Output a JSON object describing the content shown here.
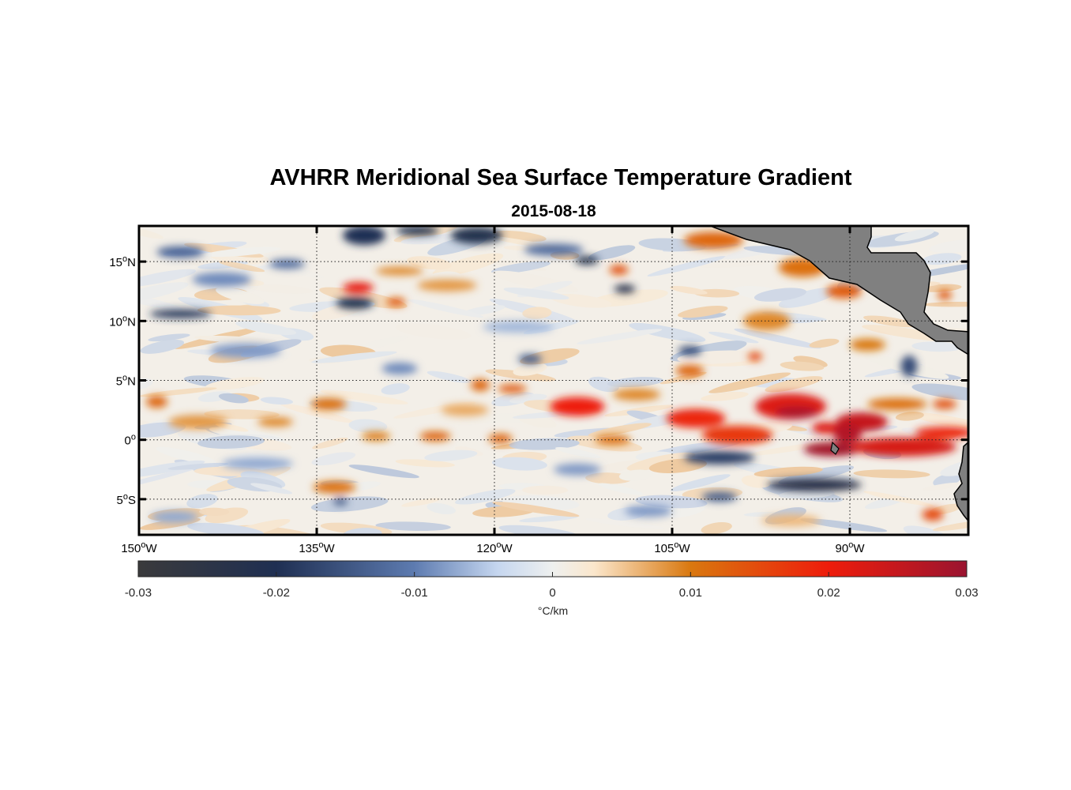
{
  "title": "AVHRR Meridional Sea Surface Temperature Gradient",
  "subtitle": "2015-08-18",
  "map": {
    "projection": "equirectangular",
    "lon_range": [
      -150,
      -80
    ],
    "lat_range": [
      -8,
      18
    ],
    "grid": "dotted",
    "land_color": "#808080",
    "lon_ticks": [
      {
        "value": -150,
        "deg": "150",
        "hemi": "W"
      },
      {
        "value": -135,
        "deg": "135",
        "hemi": "W"
      },
      {
        "value": -120,
        "deg": "120",
        "hemi": "W"
      },
      {
        "value": -105,
        "deg": "105",
        "hemi": "W"
      },
      {
        "value": -90,
        "deg": "90",
        "hemi": "W"
      }
    ],
    "lat_ticks": [
      {
        "value": 15,
        "deg": "15",
        "hemi": "N"
      },
      {
        "value": 10,
        "deg": "10",
        "hemi": "N"
      },
      {
        "value": 5,
        "deg": "5",
        "hemi": "N"
      },
      {
        "value": 0,
        "deg": "0",
        "hemi": ""
      },
      {
        "value": -5,
        "deg": "5",
        "hemi": "S"
      }
    ],
    "features": [
      {
        "lon": -131.5,
        "lat": 12.8,
        "rx": 1.3,
        "ry": 0.45,
        "v": 0.021
      },
      {
        "lon": -131.8,
        "lat": 11.5,
        "rx": 1.6,
        "ry": 0.5,
        "v": -0.022
      },
      {
        "lon": -146.5,
        "lat": 10.6,
        "rx": 2.6,
        "ry": 0.35,
        "v": -0.02
      },
      {
        "lon": -128.3,
        "lat": 11.6,
        "rx": 0.8,
        "ry": 0.35,
        "v": 0.013
      },
      {
        "lon": -146.5,
        "lat": 15.8,
        "rx": 2.0,
        "ry": 0.5,
        "v": -0.013
      },
      {
        "lon": -131.0,
        "lat": 17.2,
        "rx": 1.8,
        "ry": 0.8,
        "v": -0.02
      },
      {
        "lon": -126.5,
        "lat": 17.6,
        "rx": 1.8,
        "ry": 0.4,
        "v": -0.022
      },
      {
        "lon": -121.5,
        "lat": 17.2,
        "rx": 2.2,
        "ry": 0.7,
        "v": -0.022
      },
      {
        "lon": -112.2,
        "lat": 15.1,
        "rx": 1.0,
        "ry": 0.35,
        "v": -0.022
      },
      {
        "lon": -109.0,
        "lat": 12.7,
        "rx": 0.9,
        "ry": 0.35,
        "v": -0.024
      },
      {
        "lon": -109.5,
        "lat": 14.3,
        "rx": 0.8,
        "ry": 0.4,
        "v": 0.014
      },
      {
        "lon": -115.0,
        "lat": 16.0,
        "rx": 2.5,
        "ry": 0.5,
        "v": -0.012
      },
      {
        "lon": -113.0,
        "lat": 2.8,
        "rx": 2.3,
        "ry": 0.8,
        "v": 0.02
      },
      {
        "lon": -118.5,
        "lat": 4.3,
        "rx": 1.2,
        "ry": 0.35,
        "v": 0.013
      },
      {
        "lon": -121.2,
        "lat": 4.6,
        "rx": 0.8,
        "ry": 0.5,
        "v": 0.012
      },
      {
        "lon": -103.0,
        "lat": 1.8,
        "rx": 2.5,
        "ry": 0.8,
        "v": 0.019
      },
      {
        "lon": -99.5,
        "lat": 0.4,
        "rx": 3.0,
        "ry": 0.8,
        "v": 0.017
      },
      {
        "lon": -95.0,
        "lat": 2.8,
        "rx": 3.0,
        "ry": 1.1,
        "v": 0.022
      },
      {
        "lon": -94.5,
        "lat": 2.3,
        "rx": 1.8,
        "ry": 0.5,
        "v": 0.028
      },
      {
        "lon": -92.0,
        "lat": 1.0,
        "rx": 1.2,
        "ry": 0.5,
        "v": 0.022
      },
      {
        "lon": -89.0,
        "lat": 1.5,
        "rx": 2.2,
        "ry": 0.8,
        "v": 0.025
      },
      {
        "lon": -90.2,
        "lat": 0.5,
        "rx": 1.2,
        "ry": 0.8,
        "v": 0.027
      },
      {
        "lon": -91.5,
        "lat": -0.8,
        "rx": 2.4,
        "ry": 0.6,
        "v": 0.029
      },
      {
        "lon": -85.5,
        "lat": -0.6,
        "rx": 4.5,
        "ry": 0.8,
        "v": 0.023
      },
      {
        "lon": -82.0,
        "lat": 0.6,
        "rx": 2.5,
        "ry": 0.5,
        "v": 0.019
      },
      {
        "lon": -93.0,
        "lat": -3.8,
        "rx": 4.0,
        "ry": 0.55,
        "v": -0.024
      },
      {
        "lon": -101.0,
        "lat": -1.5,
        "rx": 3.0,
        "ry": 0.55,
        "v": -0.018
      },
      {
        "lon": -83.0,
        "lat": -6.3,
        "rx": 0.9,
        "ry": 0.5,
        "v": 0.015
      },
      {
        "lon": -85.0,
        "lat": 6.2,
        "rx": 0.7,
        "ry": 0.9,
        "v": -0.016
      },
      {
        "lon": -90.5,
        "lat": 12.5,
        "rx": 1.5,
        "ry": 0.6,
        "v": 0.013
      },
      {
        "lon": -94.0,
        "lat": 14.5,
        "rx": 2.0,
        "ry": 0.8,
        "v": 0.011
      },
      {
        "lon": -101.5,
        "lat": 16.8,
        "rx": 2.5,
        "ry": 0.7,
        "v": 0.012
      },
      {
        "lon": -97.0,
        "lat": 10.0,
        "rx": 2.0,
        "ry": 0.8,
        "v": 0.009
      },
      {
        "lon": -103.5,
        "lat": 7.5,
        "rx": 1.0,
        "ry": 0.4,
        "v": -0.016
      },
      {
        "lon": -103.5,
        "lat": 5.8,
        "rx": 1.2,
        "ry": 0.5,
        "v": 0.012
      },
      {
        "lon": -98.0,
        "lat": 7.0,
        "rx": 0.6,
        "ry": 0.35,
        "v": 0.015
      },
      {
        "lon": -148.5,
        "lat": 3.2,
        "rx": 0.9,
        "ry": 0.5,
        "v": 0.012
      },
      {
        "lon": -134.0,
        "lat": 3.0,
        "rx": 1.5,
        "ry": 0.5,
        "v": 0.011
      },
      {
        "lon": -125.0,
        "lat": 0.3,
        "rx": 1.3,
        "ry": 0.4,
        "v": 0.012
      },
      {
        "lon": -130.0,
        "lat": 0.3,
        "rx": 1.2,
        "ry": 0.35,
        "v": 0.01
      },
      {
        "lon": -133.5,
        "lat": -4.0,
        "rx": 1.8,
        "ry": 0.5,
        "v": 0.011
      },
      {
        "lon": -133.0,
        "lat": -5.2,
        "rx": 0.6,
        "ry": 0.3,
        "v": -0.015
      },
      {
        "lon": -119.5,
        "lat": 0.1,
        "rx": 1.0,
        "ry": 0.4,
        "v": 0.012
      },
      {
        "lon": -110.0,
        "lat": 0.0,
        "rx": 1.5,
        "ry": 0.4,
        "v": 0.011
      },
      {
        "lon": -128.0,
        "lat": 6.0,
        "rx": 1.5,
        "ry": 0.5,
        "v": -0.009
      },
      {
        "lon": -141.0,
        "lat": 7.5,
        "rx": 3.0,
        "ry": 0.6,
        "v": -0.008
      },
      {
        "lon": -117.0,
        "lat": 6.8,
        "rx": 1.0,
        "ry": 0.4,
        "v": -0.014
      },
      {
        "lon": -101.0,
        "lat": -4.8,
        "rx": 1.5,
        "ry": 0.4,
        "v": -0.014
      },
      {
        "lon": -113.0,
        "lat": -2.5,
        "rx": 2.0,
        "ry": 0.5,
        "v": -0.008
      },
      {
        "lon": -140.0,
        "lat": -2.0,
        "rx": 3.0,
        "ry": 0.5,
        "v": -0.007
      },
      {
        "lon": -143.0,
        "lat": 13.5,
        "rx": 2.5,
        "ry": 0.6,
        "v": -0.009
      },
      {
        "lon": -124.0,
        "lat": 13.0,
        "rx": 2.5,
        "ry": 0.5,
        "v": 0.008
      },
      {
        "lon": -137.5,
        "lat": 14.8,
        "rx": 1.5,
        "ry": 0.4,
        "v": -0.012
      },
      {
        "lon": -128.0,
        "lat": 14.2,
        "rx": 2.0,
        "ry": 0.35,
        "v": 0.009
      },
      {
        "lon": -118.0,
        "lat": 9.5,
        "rx": 3.0,
        "ry": 0.5,
        "v": -0.006
      },
      {
        "lon": -108.0,
        "lat": 3.8,
        "rx": 2.0,
        "ry": 0.5,
        "v": 0.009
      },
      {
        "lon": -145.0,
        "lat": 1.5,
        "rx": 2.5,
        "ry": 0.6,
        "v": 0.008
      },
      {
        "lon": -138.5,
        "lat": 1.5,
        "rx": 1.5,
        "ry": 0.4,
        "v": 0.009
      },
      {
        "lon": -122.5,
        "lat": 2.5,
        "rx": 2.0,
        "ry": 0.5,
        "v": 0.007
      },
      {
        "lon": -147.0,
        "lat": -6.5,
        "rx": 2.0,
        "ry": 0.5,
        "v": -0.007
      },
      {
        "lon": -107.0,
        "lat": -6.0,
        "rx": 2.0,
        "ry": 0.5,
        "v": -0.008
      },
      {
        "lon": -95.0,
        "lat": -6.8,
        "rx": 2.5,
        "ry": 0.5,
        "v": 0.006
      },
      {
        "lon": -86.0,
        "lat": 3.0,
        "rx": 2.5,
        "ry": 0.5,
        "v": 0.011
      },
      {
        "lon": -82.0,
        "lat": 3.0,
        "rx": 1.0,
        "ry": 0.4,
        "v": 0.014
      },
      {
        "lon": -88.5,
        "lat": 8.0,
        "rx": 1.5,
        "ry": 0.5,
        "v": 0.01
      },
      {
        "lon": -82.0,
        "lat": 12.2,
        "rx": 0.6,
        "ry": 0.4,
        "v": 0.013
      }
    ]
  },
  "colorbar": {
    "min": -0.03,
    "max": 0.03,
    "ticks": [
      "-0.03",
      "-0.02",
      "-0.01",
      "0",
      "0.01",
      "0.02",
      "0.03"
    ],
    "label": "°C/km",
    "colors": [
      {
        "v": -0.03,
        "c": "#3a3a3c"
      },
      {
        "v": -0.02,
        "c": "#1f2f52"
      },
      {
        "v": -0.01,
        "c": "#5d7bb0"
      },
      {
        "v": -0.004,
        "c": "#c5d6ef"
      },
      {
        "v": 0.0,
        "c": "#eef0ef"
      },
      {
        "v": 0.003,
        "c": "#fbe7cc"
      },
      {
        "v": 0.01,
        "c": "#d9780f"
      },
      {
        "v": 0.02,
        "c": "#ee1c0b"
      },
      {
        "v": 0.03,
        "c": "#9a1430"
      }
    ]
  }
}
